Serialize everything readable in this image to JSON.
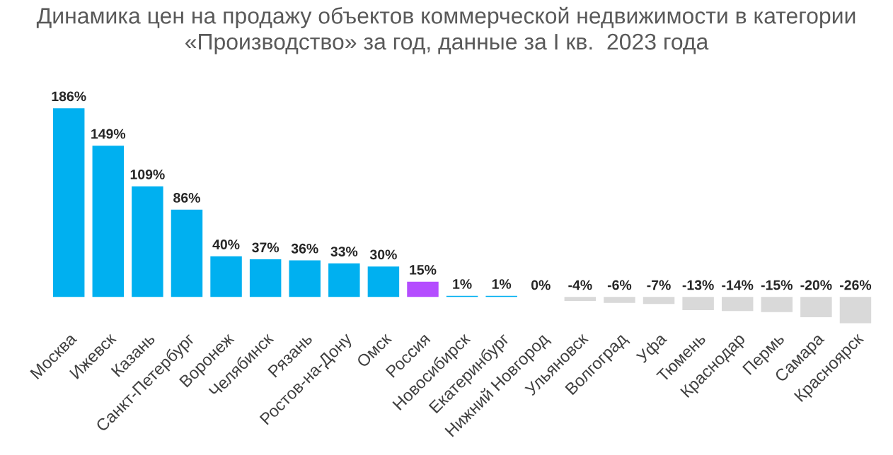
{
  "chart_data": {
    "type": "bar",
    "title": "Динамика цен на продажу объектов коммерческой недвижимости в категории\n«Производство» за год, данные за I кв.  2023 года",
    "categories": [
      "Москва",
      "Ижевск",
      "Казань",
      "Санкт-Петербург",
      "Воронеж",
      "Челябинск",
      "Рязань",
      "Ростов-на-Дону",
      "Омск",
      "Россия",
      "Новосибирск",
      "Екатеринбург",
      "Нижний Новгород",
      "Ульяновск",
      "Волгоград",
      "Уфа",
      "Тюмень",
      "Краснодар",
      "Пермь",
      "Самара",
      "Красноярск"
    ],
    "values": [
      186,
      149,
      109,
      86,
      40,
      37,
      36,
      33,
      30,
      15,
      1,
      1,
      0,
      -4,
      -6,
      -7,
      -13,
      -14,
      -15,
      -20,
      -26
    ],
    "value_labels": [
      "186%",
      "149%",
      "109%",
      "86%",
      "40%",
      "37%",
      "36%",
      "33%",
      "30%",
      "15%",
      "1%",
      "1%",
      "0%",
      "-4%",
      "-6%",
      "-7%",
      "-13%",
      "-14%",
      "-15%",
      "-20%",
      "-26%"
    ],
    "colors": [
      "#00b0f0",
      "#00b0f0",
      "#00b0f0",
      "#00b0f0",
      "#00b0f0",
      "#00b0f0",
      "#00b0f0",
      "#00b0f0",
      "#00b0f0",
      "#b44dff",
      "#00b0f0",
      "#00b0f0",
      "#00b0f0",
      "#d9d9d9",
      "#d9d9d9",
      "#d9d9d9",
      "#d9d9d9",
      "#d9d9d9",
      "#d9d9d9",
      "#d9d9d9",
      "#d9d9d9"
    ],
    "grid": false,
    "legend": false
  }
}
